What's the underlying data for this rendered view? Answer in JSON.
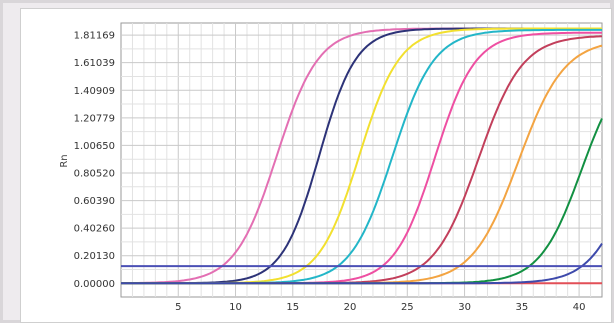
{
  "chart_data": {
    "type": "line",
    "title": "",
    "xlabel": "",
    "ylabel": "Rn",
    "xlim": [
      0,
      42
    ],
    "ylim": [
      -0.1,
      1.9
    ],
    "grid": true,
    "legend": "none",
    "x_ticks": [
      5,
      10,
      15,
      20,
      25,
      30,
      35,
      40
    ],
    "y_ticks": [
      "0.00000",
      "0.20130",
      "0.40260",
      "0.60390",
      "0.80520",
      "1.00650",
      "1.20779",
      "1.40909",
      "1.61039",
      "1.81169"
    ],
    "threshold": {
      "value": 0.125,
      "color": "#4b50b5"
    },
    "baseline_color": "#e24f57",
    "series": [
      {
        "color": "#e36fb3",
        "max": 1.86,
        "midpoint": 13.6,
        "slope": 0.55
      },
      {
        "color": "#2d3378",
        "max": 1.86,
        "midpoint": 17.3,
        "slope": 0.62
      },
      {
        "color": "#f2e02f",
        "max": 1.86,
        "midpoint": 20.8,
        "slope": 0.57
      },
      {
        "color": "#23b6c8",
        "max": 1.85,
        "midpoint": 23.7,
        "slope": 0.55
      },
      {
        "color": "#ee4fa2",
        "max": 1.83,
        "midpoint": 27.4,
        "slope": 0.57
      },
      {
        "color": "#c23f5b",
        "max": 1.81,
        "midpoint": 31.2,
        "slope": 0.52
      },
      {
        "color": "#f3a442",
        "max": 1.78,
        "midpoint": 34.7,
        "slope": 0.5
      },
      {
        "color": "#129042",
        "max": 1.65,
        "midpoint": 40.2,
        "slope": 0.55
      },
      {
        "color": "#3e4aab",
        "max": 1.5,
        "midpoint": 44.6,
        "slope": 0.55
      }
    ]
  }
}
